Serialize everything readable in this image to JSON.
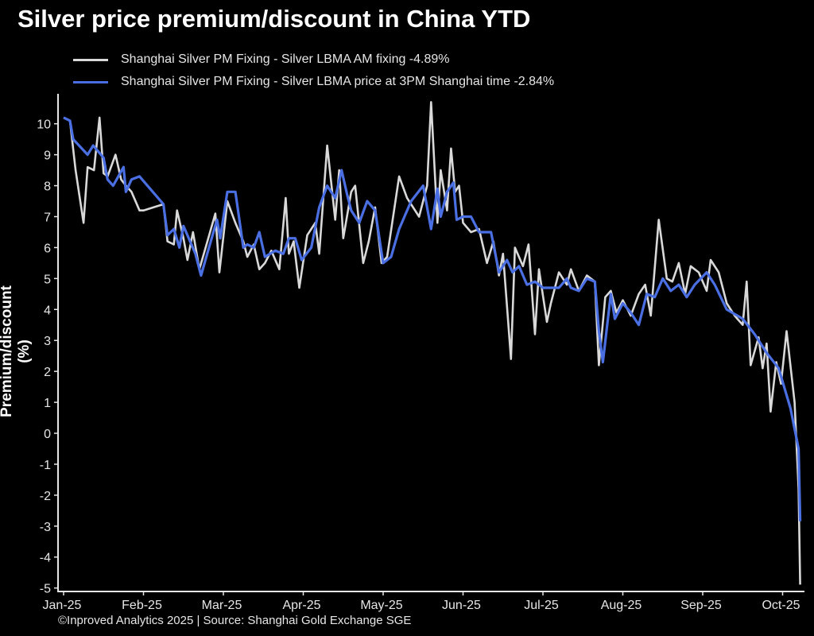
{
  "chart_data": {
    "type": "line",
    "title": "Silver price premium/discount in China YTD",
    "ylabel": "Premium/discount (%)",
    "xlabel": "",
    "ylim": [
      -5,
      10.8
    ],
    "yticks": [
      10,
      9,
      8,
      7,
      6,
      5,
      4,
      3,
      2,
      1,
      0,
      -1,
      -2,
      -3,
      -4,
      -5
    ],
    "xticks": [
      "Jan-25",
      "Feb-25",
      "Mar-25",
      "Apr-25",
      "May-25",
      "Jun-25",
      "Jul-25",
      "Aug-25",
      "Sep-25",
      "Oct-25"
    ],
    "x_unit": "months since Jan-25",
    "legend_position": "top-left",
    "grid": false,
    "series": [
      {
        "name": "Shanghai Silver PM Fixing - Silver LBMA AM fixing -4.89%",
        "color": "#d9d9d9",
        "x": [
          0,
          0.08,
          0.15,
          0.25,
          0.3,
          0.38,
          0.45,
          0.5,
          0.55,
          0.65,
          0.72,
          0.78,
          0.85,
          0.95,
          1.0,
          1.25,
          1.3,
          1.38,
          1.42,
          1.5,
          1.55,
          1.62,
          1.7,
          1.8,
          1.9,
          1.95,
          2.05,
          2.15,
          2.25,
          2.3,
          2.38,
          2.45,
          2.52,
          2.6,
          2.7,
          2.78,
          2.82,
          2.88,
          2.95,
          3.05,
          3.15,
          3.2,
          3.3,
          3.4,
          3.45,
          3.5,
          3.6,
          3.65,
          3.75,
          3.82,
          3.9,
          3.98,
          4.05,
          4.2,
          4.3,
          4.45,
          4.55,
          4.6,
          4.68,
          4.72,
          4.8,
          4.85,
          4.9,
          4.95,
          5.0,
          5.1,
          5.2,
          5.3,
          5.38,
          5.45,
          5.5,
          5.6,
          5.65,
          5.75,
          5.82,
          5.9,
          5.95,
          6.05,
          6.1,
          6.2,
          6.3,
          6.35,
          6.45,
          6.55,
          6.65,
          6.7,
          6.78,
          6.85,
          6.92,
          7.0,
          7.1,
          7.2,
          7.28,
          7.35,
          7.45,
          7.55,
          7.62,
          7.7,
          7.78,
          7.85,
          7.95,
          8.05,
          8.1,
          8.2,
          8.3,
          8.4,
          8.5,
          8.55,
          8.6,
          8.7,
          8.75,
          8.8,
          8.85,
          8.92,
          8.98,
          9.05,
          9.15,
          9.2,
          9.22
        ],
        "y": [
          10.2,
          10.1,
          8.5,
          6.8,
          8.6,
          8.5,
          10.2,
          8.4,
          8.3,
          9.0,
          8.2,
          8.0,
          7.8,
          7.2,
          7.2,
          7.4,
          6.2,
          6.1,
          7.2,
          6.3,
          5.6,
          6.5,
          5.3,
          6.2,
          7.1,
          5.2,
          7.5,
          6.8,
          6.2,
          5.7,
          6.1,
          5.3,
          5.5,
          5.9,
          5.3,
          7.6,
          5.8,
          6.2,
          4.7,
          6.4,
          6.8,
          5.8,
          9.3,
          6.9,
          8.5,
          6.3,
          7.8,
          8.0,
          5.5,
          6.2,
          7.3,
          5.5,
          5.7,
          8.3,
          7.6,
          7.0,
          8.0,
          10.7,
          6.8,
          8.5,
          7.2,
          9.2,
          7.8,
          8.0,
          6.8,
          6.5,
          6.6,
          5.5,
          6.2,
          5.1,
          5.8,
          2.4,
          6.0,
          5.4,
          6.1,
          3.2,
          5.3,
          3.6,
          4.2,
          5.2,
          4.8,
          5.3,
          4.6,
          5.1,
          4.9,
          2.2,
          4.4,
          4.6,
          3.9,
          4.3,
          3.8,
          4.5,
          4.8,
          3.8,
          6.9,
          5.0,
          4.9,
          5.5,
          4.5,
          5.4,
          5.2,
          4.6,
          5.6,
          5.2,
          4.2,
          3.8,
          3.5,
          4.9,
          2.2,
          3.1,
          2.1,
          2.9,
          0.7,
          2.3,
          1.6,
          3.3,
          1.0,
          -1.8,
          -4.89
        ]
      },
      {
        "name": "Shanghai Silver PM Fixing - Silver LBMA price at 3PM Shanghai time -2.84%",
        "color": "#4a6fe3",
        "x": [
          0,
          0.08,
          0.12,
          0.3,
          0.37,
          0.5,
          0.55,
          0.62,
          0.75,
          0.78,
          0.85,
          0.95,
          1.25,
          1.3,
          1.38,
          1.45,
          1.5,
          1.6,
          1.65,
          1.72,
          1.82,
          1.92,
          1.96,
          2.05,
          2.15,
          2.25,
          2.3,
          2.38,
          2.45,
          2.52,
          2.65,
          2.75,
          2.82,
          2.9,
          2.98,
          3.1,
          3.2,
          3.3,
          3.4,
          3.48,
          3.55,
          3.6,
          3.7,
          3.8,
          3.9,
          4.0,
          4.1,
          4.2,
          4.35,
          4.5,
          4.6,
          4.68,
          4.72,
          4.8,
          4.88,
          4.92,
          5.0,
          5.1,
          5.2,
          5.35,
          5.45,
          5.55,
          5.62,
          5.7,
          5.8,
          5.9,
          6.0,
          6.2,
          6.3,
          6.35,
          6.45,
          6.55,
          6.65,
          6.7,
          6.75,
          6.85,
          6.9,
          7.0,
          7.1,
          7.2,
          7.3,
          7.4,
          7.5,
          7.6,
          7.7,
          7.8,
          7.9,
          8.05,
          8.15,
          8.3,
          8.5,
          8.65,
          8.8,
          8.95,
          9.1,
          9.2,
          9.22
        ],
        "y": [
          10.2,
          10.1,
          9.5,
          9.0,
          9.3,
          8.9,
          8.2,
          8.0,
          8.6,
          7.8,
          8.2,
          8.3,
          7.4,
          6.4,
          6.6,
          6.0,
          6.7,
          6.1,
          5.8,
          5.1,
          6.0,
          6.9,
          6.3,
          7.8,
          7.8,
          6.0,
          6.1,
          6.0,
          6.5,
          5.7,
          5.9,
          5.8,
          6.3,
          6.3,
          5.6,
          6.0,
          7.3,
          8.0,
          7.6,
          8.5,
          7.7,
          7.2,
          6.8,
          7.5,
          7.2,
          5.5,
          5.7,
          6.6,
          7.5,
          8.0,
          6.6,
          7.9,
          7.0,
          7.8,
          8.1,
          6.9,
          7.0,
          7.0,
          6.5,
          6.5,
          5.2,
          5.6,
          5.2,
          5.4,
          4.8,
          4.9,
          4.7,
          4.7,
          5.0,
          4.7,
          4.6,
          5.0,
          4.9,
          3.3,
          2.3,
          4.5,
          3.7,
          4.2,
          3.9,
          3.5,
          4.5,
          4.4,
          5.0,
          4.6,
          4.8,
          4.4,
          4.8,
          5.2,
          4.8,
          4.0,
          3.7,
          3.2,
          2.6,
          2.1,
          0.8,
          -0.5,
          -2.84
        ]
      }
    ]
  },
  "footer": "©Inproved Analytics 2025 | Source: Shanghai Gold Exchange SGE"
}
